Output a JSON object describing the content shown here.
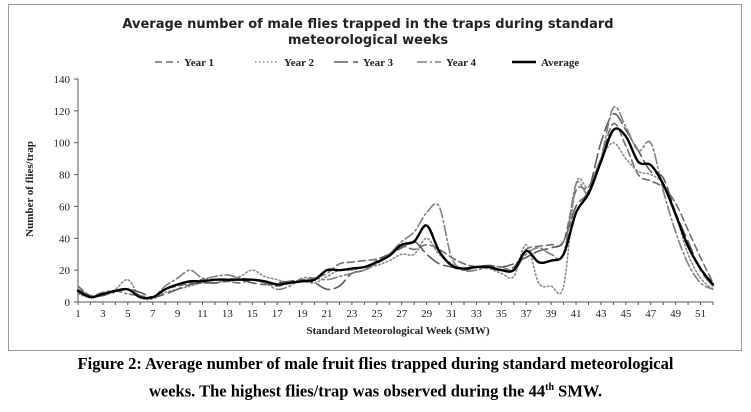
{
  "chart_data": {
    "type": "line",
    "title_line1": "Average number of male flies trapped in the traps during standard",
    "title_line2": "meteorological weeks",
    "xlabel": "Standard  Meteorological  Week  (SMW)",
    "ylabel": "Number of flies/trap",
    "ylim": [
      0,
      140
    ],
    "yticks": [
      "0",
      "20",
      "40",
      "60",
      "80",
      "100",
      "120",
      "140"
    ],
    "xticks": [
      "1",
      "3",
      "5",
      "7",
      "9",
      "11",
      "13",
      "15",
      "17",
      "19",
      "21",
      "23",
      "25",
      "27",
      "29",
      "31",
      "33",
      "35",
      "37",
      "39",
      "41",
      "43",
      "45",
      "47",
      "49",
      "51"
    ],
    "xlim": [
      1,
      52
    ],
    "grid": false,
    "legend_position": "top",
    "x": [
      1,
      2,
      3,
      4,
      5,
      6,
      7,
      8,
      9,
      10,
      11,
      12,
      13,
      14,
      15,
      16,
      17,
      18,
      19,
      20,
      21,
      22,
      23,
      24,
      25,
      26,
      27,
      28,
      29,
      30,
      31,
      32,
      33,
      34,
      35,
      36,
      37,
      38,
      39,
      40,
      41,
      42,
      43,
      44,
      45,
      46,
      47,
      48,
      49,
      50,
      51,
      52
    ],
    "series": [
      {
        "name": "Year 1",
        "color": "#6e6e6e",
        "dash": "7,4",
        "width": 1.6,
        "values": [
          10,
          4,
          6,
          6,
          8,
          4,
          3,
          8,
          10,
          12,
          14,
          14,
          13,
          12,
          14,
          12,
          10,
          12,
          14,
          15,
          18,
          24,
          25,
          26,
          27,
          30,
          35,
          33,
          36,
          33,
          28,
          24,
          22,
          21,
          20,
          22,
          33,
          35,
          36,
          38,
          70,
          72,
          90,
          112,
          98,
          80,
          76,
          72,
          62,
          45,
          28,
          12
        ]
      },
      {
        "name": "Year 2",
        "color": "#8a8a8a",
        "dash": "1.5,2.5",
        "width": 1.6,
        "values": [
          5,
          3,
          5,
          8,
          14,
          3,
          2,
          6,
          8,
          10,
          12,
          12,
          14,
          16,
          20,
          16,
          14,
          12,
          13,
          12,
          16,
          20,
          20,
          22,
          23,
          26,
          30,
          30,
          40,
          30,
          24,
          20,
          22,
          21,
          18,
          16,
          36,
          12,
          10,
          10,
          74,
          72,
          90,
          100,
          90,
          82,
          80,
          74,
          55,
          30,
          15,
          8
        ]
      },
      {
        "name": "Year 3",
        "color": "#5c5c5c",
        "dash": "14,5",
        "width": 1.6,
        "values": [
          8,
          4,
          4,
          7,
          8,
          6,
          3,
          5,
          8,
          11,
          12,
          12,
          13,
          14,
          12,
          11,
          12,
          13,
          14,
          12,
          8,
          10,
          18,
          20,
          26,
          30,
          34,
          38,
          30,
          24,
          22,
          20,
          22,
          23,
          22,
          24,
          28,
          32,
          34,
          38,
          60,
          70,
          100,
          118,
          108,
          95,
          82,
          78,
          56,
          38,
          20,
          10
        ]
      },
      {
        "name": "Year 4",
        "color": "#808080",
        "dash": "10,3,2,3",
        "width": 1.6,
        "values": [
          6,
          3,
          6,
          7,
          5,
          4,
          3,
          10,
          15,
          20,
          15,
          16,
          17,
          15,
          14,
          12,
          8,
          10,
          15,
          15,
          14,
          16,
          18,
          20,
          24,
          30,
          38,
          44,
          56,
          60,
          28,
          20,
          20,
          22,
          22,
          20,
          30,
          34,
          30,
          30,
          74,
          68,
          90,
          122,
          110,
          95,
          100,
          70,
          44,
          24,
          12,
          8
        ]
      },
      {
        "name": "Average",
        "color": "#000000",
        "dash": "",
        "width": 2.4,
        "values": [
          7,
          3,
          5,
          7,
          8,
          3,
          3,
          8,
          11,
          13,
          13,
          14,
          14,
          14,
          14,
          13,
          11,
          12,
          13,
          14,
          20,
          20,
          21,
          22,
          25,
          29,
          36,
          38,
          48,
          32,
          23,
          21,
          22,
          22,
          20,
          20,
          32,
          25,
          26,
          30,
          56,
          68,
          88,
          108,
          104,
          88,
          86,
          74,
          55,
          35,
          21,
          11
        ]
      }
    ]
  },
  "caption": {
    "line1": "Figure 2: Average number of male fruit flies trapped during standard meteorological",
    "line2_before": "weeks. The highest flies/trap was observed during the 44",
    "line2_sup": "th",
    "line2_after": " SMW."
  }
}
